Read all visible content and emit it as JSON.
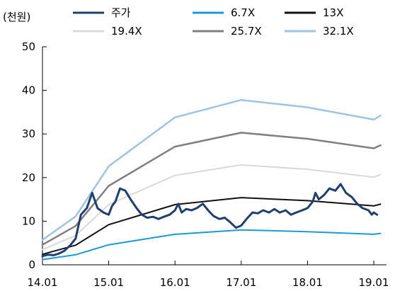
{
  "chart_data": {
    "type": "line",
    "unit_label": "(천원)",
    "ylim": [
      0,
      50
    ],
    "y_ticks": [
      0,
      10,
      20,
      30,
      40,
      50
    ],
    "xlim": [
      2014.0,
      2019.0
    ],
    "x_ticks": [
      {
        "x": 2014.0,
        "label": "14.01"
      },
      {
        "x": 2015.0,
        "label": "15.01"
      },
      {
        "x": 2016.0,
        "label": "16.01"
      },
      {
        "x": 2017.0,
        "label": "17.01"
      },
      {
        "x": 2018.0,
        "label": "18.01"
      },
      {
        "x": 2019.0,
        "label": "19.01"
      }
    ],
    "grid": false,
    "legend_position": "top",
    "series": [
      {
        "name": "주가",
        "color": "#1f3f73",
        "width": 3,
        "points": [
          [
            2014.0,
            2.0
          ],
          [
            2014.08,
            2.3
          ],
          [
            2014.17,
            2.2
          ],
          [
            2014.25,
            2.6
          ],
          [
            2014.33,
            3.2
          ],
          [
            2014.42,
            4.5
          ],
          [
            2014.5,
            6.0
          ],
          [
            2014.58,
            11.5
          ],
          [
            2014.67,
            13.0
          ],
          [
            2014.75,
            16.5
          ],
          [
            2014.83,
            13.0
          ],
          [
            2014.92,
            12.0
          ],
          [
            2015.0,
            11.5
          ],
          [
            2015.05,
            13.5
          ],
          [
            2015.1,
            14.5
          ],
          [
            2015.17,
            17.5
          ],
          [
            2015.25,
            17.0
          ],
          [
            2015.33,
            15.0
          ],
          [
            2015.42,
            13.0
          ],
          [
            2015.5,
            11.5
          ],
          [
            2015.58,
            10.8
          ],
          [
            2015.67,
            11.0
          ],
          [
            2015.75,
            10.5
          ],
          [
            2015.83,
            11.0
          ],
          [
            2015.92,
            11.5
          ],
          [
            2016.0,
            12.5
          ],
          [
            2016.05,
            14.0
          ],
          [
            2016.1,
            12.0
          ],
          [
            2016.17,
            12.8
          ],
          [
            2016.25,
            12.5
          ],
          [
            2016.33,
            13.0
          ],
          [
            2016.42,
            14.0
          ],
          [
            2016.5,
            12.5
          ],
          [
            2016.58,
            11.2
          ],
          [
            2016.67,
            10.5
          ],
          [
            2016.75,
            10.8
          ],
          [
            2016.83,
            9.8
          ],
          [
            2016.92,
            8.5
          ],
          [
            2017.0,
            9.0
          ],
          [
            2017.08,
            10.5
          ],
          [
            2017.17,
            12.0
          ],
          [
            2017.25,
            11.8
          ],
          [
            2017.33,
            12.5
          ],
          [
            2017.42,
            12.0
          ],
          [
            2017.5,
            12.8
          ],
          [
            2017.58,
            12.0
          ],
          [
            2017.67,
            12.5
          ],
          [
            2017.75,
            11.5
          ],
          [
            2017.83,
            12.0
          ],
          [
            2017.92,
            12.5
          ],
          [
            2018.0,
            13.0
          ],
          [
            2018.08,
            14.5
          ],
          [
            2018.12,
            16.5
          ],
          [
            2018.17,
            15.0
          ],
          [
            2018.25,
            16.0
          ],
          [
            2018.33,
            17.5
          ],
          [
            2018.42,
            17.0
          ],
          [
            2018.5,
            18.5
          ],
          [
            2018.58,
            16.5
          ],
          [
            2018.67,
            15.5
          ],
          [
            2018.75,
            14.0
          ],
          [
            2018.83,
            13.0
          ],
          [
            2018.92,
            12.5
          ],
          [
            2018.97,
            11.5
          ],
          [
            2019.0,
            12.0
          ],
          [
            2019.05,
            11.5
          ]
        ]
      },
      {
        "name": "6.7X",
        "color": "#1a9ad6",
        "width": 2,
        "points": [
          [
            2014.0,
            1.2
          ],
          [
            2014.5,
            2.3
          ],
          [
            2015.0,
            4.6
          ],
          [
            2016.0,
            7.0
          ],
          [
            2017.0,
            8.0
          ],
          [
            2018.0,
            7.6
          ],
          [
            2019.0,
            7.0
          ],
          [
            2019.1,
            7.2
          ]
        ]
      },
      {
        "name": "13X",
        "color": "#111111",
        "width": 2,
        "points": [
          [
            2014.0,
            2.4
          ],
          [
            2014.5,
            4.5
          ],
          [
            2015.0,
            9.2
          ],
          [
            2016.0,
            13.8
          ],
          [
            2017.0,
            15.4
          ],
          [
            2018.0,
            14.7
          ],
          [
            2019.0,
            13.5
          ],
          [
            2019.1,
            13.9
          ]
        ]
      },
      {
        "name": "19.4X",
        "color": "#d9d9d9",
        "width": 2,
        "points": [
          [
            2014.0,
            3.5
          ],
          [
            2014.5,
            6.7
          ],
          [
            2015.0,
            13.8
          ],
          [
            2016.0,
            20.5
          ],
          [
            2017.0,
            22.9
          ],
          [
            2018.0,
            21.9
          ],
          [
            2019.0,
            20.1
          ],
          [
            2019.1,
            20.7
          ]
        ]
      },
      {
        "name": "25.7X",
        "color": "#7f7f7f",
        "width": 2.5,
        "points": [
          [
            2014.0,
            4.6
          ],
          [
            2014.5,
            8.9
          ],
          [
            2015.0,
            18.1
          ],
          [
            2016.0,
            27.1
          ],
          [
            2017.0,
            30.3
          ],
          [
            2018.0,
            28.9
          ],
          [
            2019.0,
            26.7
          ],
          [
            2019.1,
            27.4
          ]
        ]
      },
      {
        "name": "32.1X",
        "color": "#9dc3e6",
        "width": 2.5,
        "points": [
          [
            2014.0,
            5.7
          ],
          [
            2014.5,
            11.1
          ],
          [
            2015.0,
            22.6
          ],
          [
            2016.0,
            33.8
          ],
          [
            2017.0,
            37.8
          ],
          [
            2018.0,
            36.1
          ],
          [
            2019.0,
            33.3
          ],
          [
            2019.1,
            34.2
          ]
        ]
      }
    ]
  }
}
